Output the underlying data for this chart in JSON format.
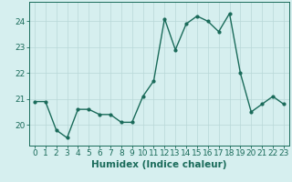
{
  "x": [
    0,
    1,
    2,
    3,
    4,
    5,
    6,
    7,
    8,
    9,
    10,
    11,
    12,
    13,
    14,
    15,
    16,
    17,
    18,
    19,
    20,
    21,
    22,
    23
  ],
  "y": [
    20.9,
    20.9,
    19.8,
    19.5,
    20.6,
    20.6,
    20.4,
    20.4,
    20.1,
    20.1,
    21.1,
    21.7,
    24.1,
    22.9,
    23.9,
    24.2,
    24.0,
    23.6,
    24.3,
    22.0,
    20.5,
    20.8,
    21.1,
    20.8
  ],
  "line_color": "#1a6b5a",
  "marker": "o",
  "marker_size": 2.0,
  "line_width": 1.0,
  "bg_color": "#d6efef",
  "grid_color": "#b8d8d8",
  "xlabel": "Humidex (Indice chaleur)",
  "xlim": [
    -0.5,
    23.5
  ],
  "ylim": [
    19.2,
    24.75
  ],
  "yticks": [
    20,
    21,
    22,
    23,
    24
  ],
  "xlabel_fontsize": 7.5,
  "tick_fontsize": 6.5
}
